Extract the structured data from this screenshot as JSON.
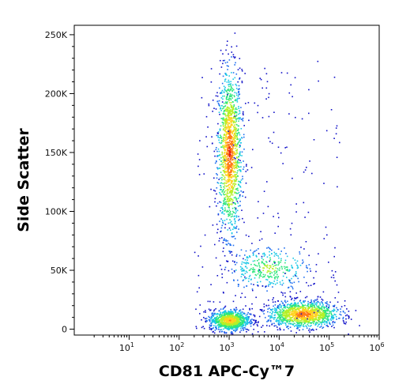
{
  "chart_data": {
    "type": "scatter",
    "style": "density-colored flow cytometry dot plot",
    "xlabel": "CD81 APC-Cy™7",
    "ylabel": "Side Scatter",
    "x_scale": "log",
    "xlim": [
      0.8,
      1000000
    ],
    "x_ticks": [
      {
        "value": 10,
        "base": "10",
        "exp": "1"
      },
      {
        "value": 100,
        "base": "10",
        "exp": "2"
      },
      {
        "value": 1000,
        "base": "10",
        "exp": "3"
      },
      {
        "value": 10000,
        "base": "10",
        "exp": "4"
      },
      {
        "value": 100000,
        "base": "10",
        "exp": "5"
      },
      {
        "value": 1000000,
        "base": "10",
        "exp": "6"
      }
    ],
    "y_scale": "linear",
    "ylim": [
      -5000,
      258000
    ],
    "y_ticks": [
      {
        "value": 0,
        "label": "0"
      },
      {
        "value": 50000,
        "label": "50K"
      },
      {
        "value": 100000,
        "label": "100K"
      },
      {
        "value": 150000,
        "label": "150K"
      },
      {
        "value": 200000,
        "label": "200K"
      },
      {
        "value": 250000,
        "label": "250K"
      }
    ],
    "grid": false,
    "legend": "none",
    "density_colors": [
      "#1010c8",
      "#1e6ef0",
      "#19c8e6",
      "#2de67d",
      "#b4f028",
      "#ffd21e",
      "#ff7814",
      "#e61414"
    ],
    "populations": [
      {
        "x_center": 1000,
        "y_center": 150000,
        "x_spread_log10": 0.12,
        "y_spread": 35000,
        "relative_density": 1.0
      },
      {
        "x_center": 1000,
        "y_center": 8000,
        "x_spread_log10": 0.2,
        "y_spread": 4500,
        "relative_density": 0.7
      },
      {
        "x_center": 30000,
        "y_center": 13000,
        "x_spread_log10": 0.35,
        "y_spread": 5500,
        "relative_density": 0.9
      },
      {
        "x_center": 6000,
        "y_center": 52000,
        "x_spread_log10": 0.4,
        "y_spread": 9000,
        "relative_density": 0.25
      }
    ]
  }
}
